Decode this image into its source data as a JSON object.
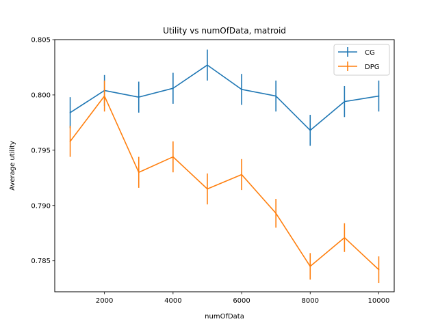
{
  "chart_data": {
    "type": "line",
    "title": "Utility vs numOfData, matroid",
    "xlabel": "numOfData",
    "ylabel": "Average utility",
    "xlim": [
      550,
      10450
    ],
    "ylim": [
      0.7822,
      0.805
    ],
    "x_ticks": [
      2000,
      4000,
      6000,
      8000,
      10000
    ],
    "x_tick_labels": [
      "2000",
      "4000",
      "6000",
      "8000",
      "10000"
    ],
    "y_ticks": [
      0.785,
      0.79,
      0.795,
      0.8,
      0.805
    ],
    "y_tick_labels": [
      "0.785",
      "0.790",
      "0.795",
      "0.800",
      "0.805"
    ],
    "grid": false,
    "legend_position": "top-right",
    "x": [
      1000,
      2000,
      3000,
      4000,
      5000,
      6000,
      7000,
      8000,
      9000,
      10000
    ],
    "series": [
      {
        "name": "CG",
        "color": "#1f77b4",
        "values": [
          0.7984,
          0.8004,
          0.7998,
          0.8006,
          0.8027,
          0.8005,
          0.7999,
          0.7968,
          0.7994,
          0.7999
        ],
        "errors": [
          0.0014,
          0.0014,
          0.0014,
          0.0014,
          0.0014,
          0.0014,
          0.0014,
          0.0014,
          0.0014,
          0.0014
        ]
      },
      {
        "name": "DPG",
        "color": "#ff7f0e",
        "values": [
          0.7958,
          0.7999,
          0.793,
          0.7944,
          0.7915,
          0.7928,
          0.7893,
          0.7845,
          0.7871,
          0.7842
        ],
        "errors": [
          0.0014,
          0.0014,
          0.0014,
          0.0014,
          0.0014,
          0.0014,
          0.0013,
          0.0012,
          0.0013,
          0.0012
        ]
      }
    ]
  }
}
